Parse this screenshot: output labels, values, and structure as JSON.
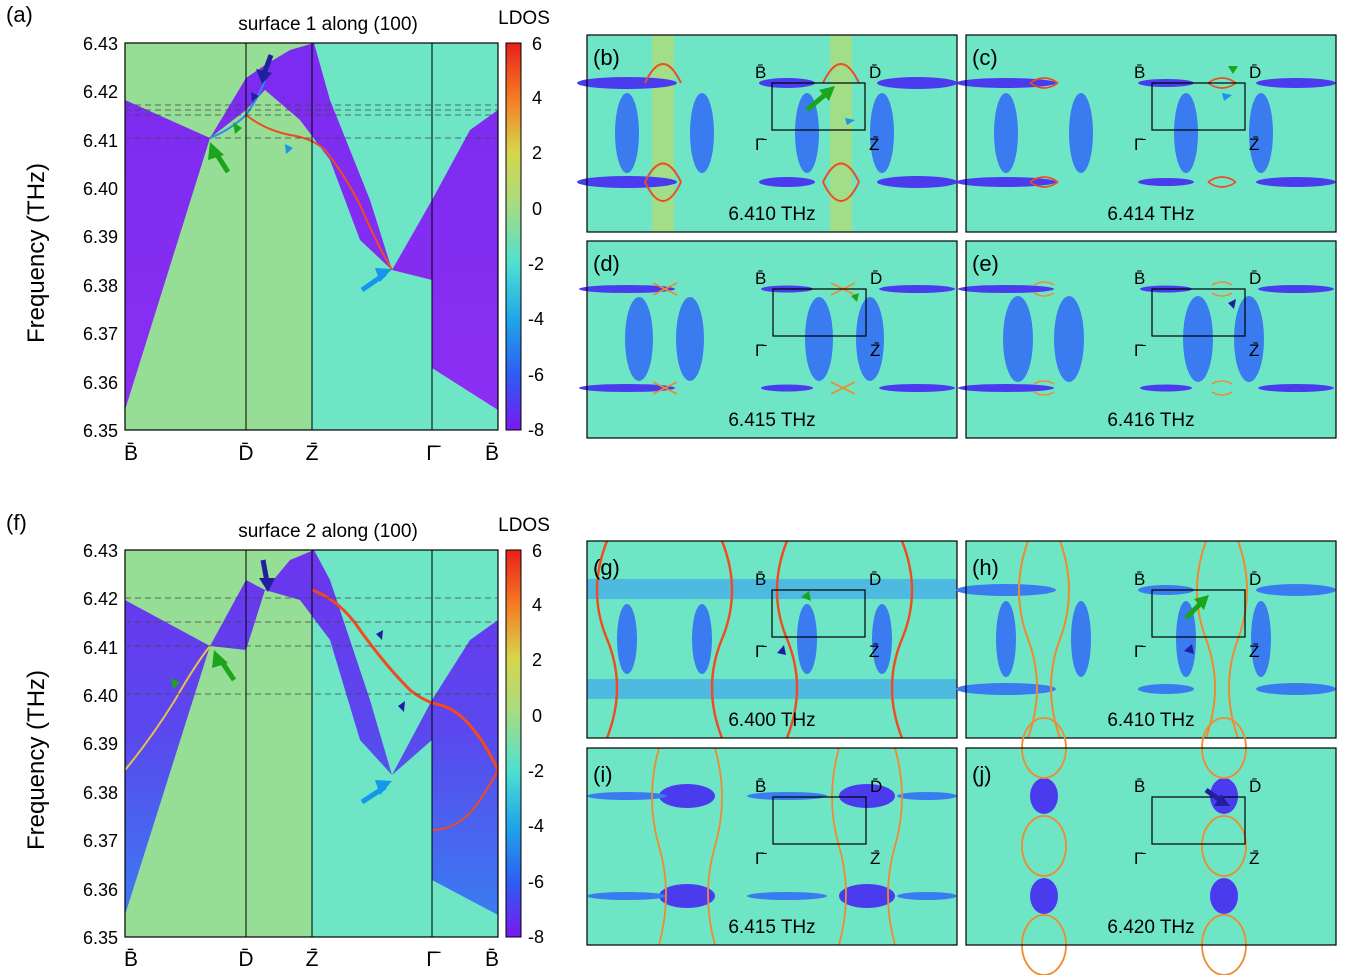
{
  "colors": {
    "background": "#6ee6c6",
    "bulk_purple": "#7a2cf0",
    "bulk_blue": "#2b7cf0",
    "light_green": "#9edc8c",
    "surface_state": "#f04a1e",
    "arrow_green": "#1aa51a",
    "arrow_blue": "#1496ea",
    "arrow_navy": "#20209e"
  },
  "colorbar": {
    "label": "LDOS",
    "ticks": [
      "6",
      "4",
      "2",
      "0",
      "-2",
      "-4",
      "-6",
      "-8"
    ]
  },
  "chart_data": [
    {
      "type": "heatmap",
      "panel": "(a)",
      "title": "surface 1 along (100)",
      "ylabel": "Frequency (THz)",
      "ylim": [
        6.35,
        6.43
      ],
      "yticks": [
        "6.43",
        "6.42",
        "6.41",
        "6.40",
        "6.39",
        "6.38",
        "6.37",
        "6.36",
        "6.35"
      ],
      "xticks": [
        "B̄",
        "D̄",
        "Z̄",
        "Γ̄",
        "B̄"
      ],
      "dashed_levels": [
        6.41,
        6.414,
        6.415,
        6.416
      ]
    },
    {
      "type": "heatmap",
      "panel": "(f)",
      "title": "surface 2 along (100)",
      "ylabel": "Frequency (THz)",
      "ylim": [
        6.35,
        6.43
      ],
      "yticks": [
        "6.43",
        "6.42",
        "6.41",
        "6.40",
        "6.39",
        "6.38",
        "6.37",
        "6.36",
        "6.35"
      ],
      "xticks": [
        "B̄",
        "D̄",
        "Z̄",
        "Γ̄",
        "B̄"
      ],
      "dashed_levels": [
        6.4,
        6.41,
        6.415,
        6.42
      ]
    }
  ],
  "panels": {
    "a": "(a)",
    "f": "(f)",
    "b": {
      "label": "(b)",
      "freq": "6.410 THz"
    },
    "c": {
      "label": "(c)",
      "freq": "6.414 THz"
    },
    "d": {
      "label": "(d)",
      "freq": "6.415 THz"
    },
    "e": {
      "label": "(e)",
      "freq": "6.416 THz"
    },
    "g": {
      "label": "(g)",
      "freq": "6.400 THz"
    },
    "h": {
      "label": "(h)",
      "freq": "6.410 THz"
    },
    "i": {
      "label": "(i)",
      "freq": "6.415 THz"
    },
    "j": {
      "label": "(j)",
      "freq": "6.420 THz"
    }
  },
  "bz_labels": {
    "B": "B̄",
    "D": "D̄",
    "G": "Γ̄",
    "Z": "Z̄"
  }
}
